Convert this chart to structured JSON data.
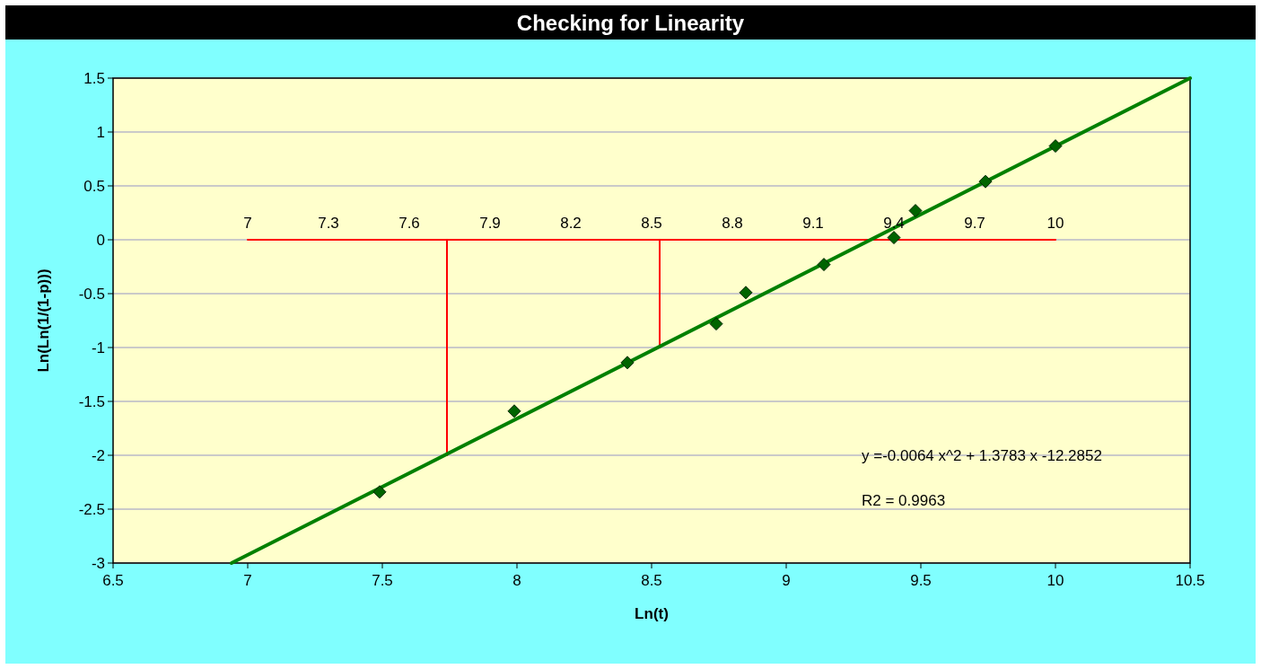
{
  "chart_data": {
    "type": "scatter",
    "title": "Checking for Linearity",
    "xlabel": "Ln(t)",
    "ylabel": "Ln(Ln(1/(1-p)))",
    "xlim": [
      6.5,
      10.5
    ],
    "xticks": [
      6.5,
      7,
      7.5,
      8,
      8.5,
      9,
      9.5,
      10,
      10.5
    ],
    "ylim": [
      -3,
      1.5
    ],
    "yticks": [
      -3,
      -2.5,
      -2,
      -1.5,
      -1,
      -0.5,
      0,
      0.5,
      1,
      1.5
    ],
    "grid": "y",
    "series": [
      {
        "type": "line",
        "color": "#ff0000",
        "marker": "none",
        "x": [
          7,
          10
        ],
        "values": [
          0,
          0
        ]
      },
      {
        "type": "line",
        "color": "#ff0000",
        "marker": "none",
        "x": [
          7.74,
          7.74
        ],
        "values": [
          0,
          -2
        ]
      },
      {
        "type": "line",
        "color": "#ff0000",
        "marker": "none",
        "x": [
          8.53,
          8.53
        ],
        "values": [
          0,
          -1
        ]
      },
      {
        "type": "line",
        "color": "#008000",
        "marker": "none",
        "x": [
          6.94,
          10.5
        ],
        "values": [
          -3,
          1.5
        ]
      },
      {
        "type": "scatter",
        "color": "#006400",
        "marker": "diamond",
        "x": [
          7.49,
          7.99,
          8.41,
          8.74,
          8.85,
          9.14,
          9.4,
          9.48,
          9.74,
          10.0
        ],
        "values": [
          -2.34,
          -1.59,
          -1.14,
          -0.78,
          -0.49,
          -0.23,
          0.02,
          0.27,
          0.54,
          0.87
        ]
      }
    ],
    "annotations": [
      {
        "text": "7",
        "x": 7,
        "y": 0
      },
      {
        "text": "7.3",
        "x": 7.3,
        "y": 0
      },
      {
        "text": "7.6",
        "x": 7.6,
        "y": 0
      },
      {
        "text": "7.9",
        "x": 7.9,
        "y": 0
      },
      {
        "text": "8.2",
        "x": 8.2,
        "y": 0
      },
      {
        "text": "8.5",
        "x": 8.5,
        "y": 0
      },
      {
        "text": "8.8",
        "x": 8.8,
        "y": 0
      },
      {
        "text": "9.1",
        "x": 9.1,
        "y": 0
      },
      {
        "text": "9.4",
        "x": 9.4,
        "y": 0
      },
      {
        "text": "9.7",
        "x": 9.7,
        "y": 0
      },
      {
        "text": "10",
        "x": 10,
        "y": 0
      },
      "y  =-0.0064 x^2  + 1.3783 x -12.2852",
      "R2 = 0.9963"
    ]
  }
}
